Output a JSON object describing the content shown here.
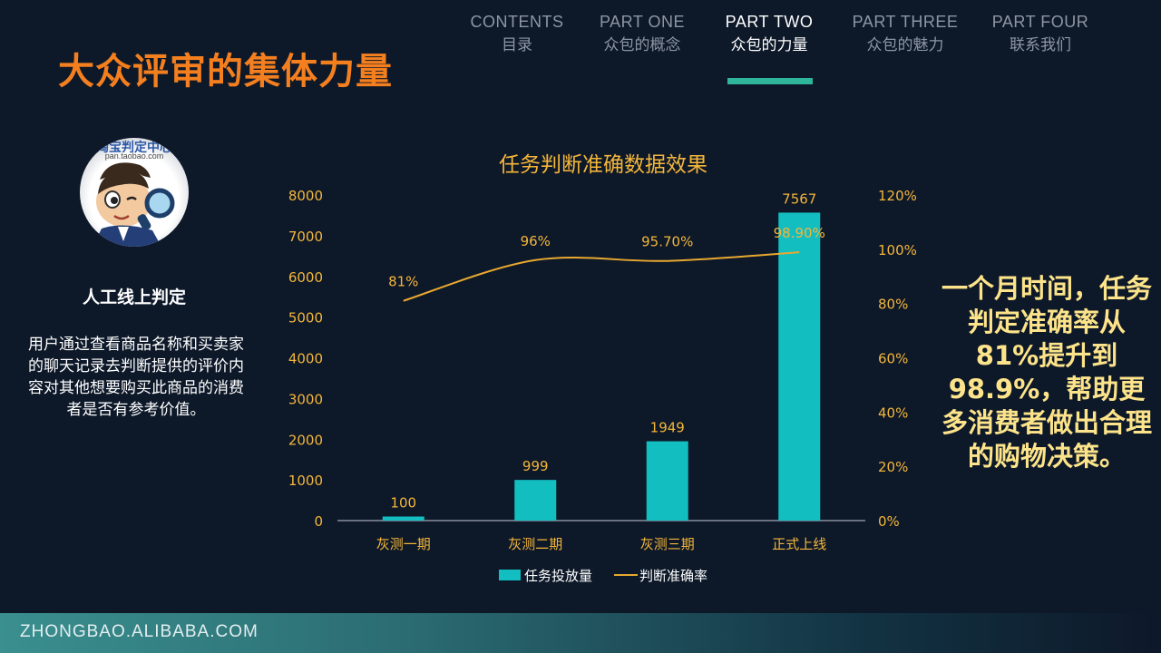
{
  "slide": {
    "title": "大众评审的集体力量"
  },
  "nav": [
    {
      "en": "CONTENTS",
      "cn": "目录",
      "active": false
    },
    {
      "en": "PART ONE",
      "cn": "众包的概念",
      "active": false
    },
    {
      "en": "PART TWO",
      "cn": "众包的力量",
      "active": true
    },
    {
      "en": "PART THREE",
      "cn": "众包的魅力",
      "active": false
    },
    {
      "en": "PART FOUR",
      "cn": "联系我们",
      "active": false
    }
  ],
  "left_panel": {
    "avatar_text": "淘宝判定中心",
    "avatar_url": "pan.taobao.com",
    "heading": "人工线上判定",
    "description": "用户通过查看商品名称和买卖家的聊天记录去判断提供的评价内容对其他想要购买此商品的消费者是否有参考价值。"
  },
  "chart_data": {
    "type": "bar",
    "title": "任务判断准确数据效果",
    "categories": [
      "灰测一期",
      "灰测二期",
      "灰测三期",
      "正式上线"
    ],
    "series": [
      {
        "name": "任务投放量",
        "type": "bar",
        "axis": "left",
        "values": [
          100,
          999,
          1949,
          7567
        ],
        "labels": [
          "100",
          "999",
          "1949",
          "7567"
        ],
        "color": "#13bec0"
      },
      {
        "name": "判断准确率",
        "type": "line",
        "axis": "right",
        "values": [
          81,
          96,
          95.7,
          98.9
        ],
        "labels": [
          "81%",
          "96%",
          "95.70%",
          "98.90%"
        ],
        "color": "#e8a830"
      }
    ],
    "ylim": [
      0,
      8000
    ],
    "yticks": [
      "0",
      "1000",
      "2000",
      "3000",
      "4000",
      "5000",
      "6000",
      "7000",
      "8000"
    ],
    "y2lim": [
      0,
      120
    ],
    "y2ticks": [
      "0%",
      "20%",
      "40%",
      "60%",
      "80%",
      "100%",
      "120%"
    ],
    "legend_position": "bottom",
    "grid": false
  },
  "conclusion": "一个月时间，任务判定准确率从81%提升到98.9%，帮助更多消费者做出合理的购物决策。",
  "footer": {
    "text": "ZHONGBAO.ALIBABA.COM"
  },
  "colors": {
    "title": "#f47f1f",
    "accent": "#2fb59a",
    "bar": "#13bec0",
    "line": "#e8a830",
    "conclusion": "#fde48a",
    "background": "#0d1829"
  }
}
